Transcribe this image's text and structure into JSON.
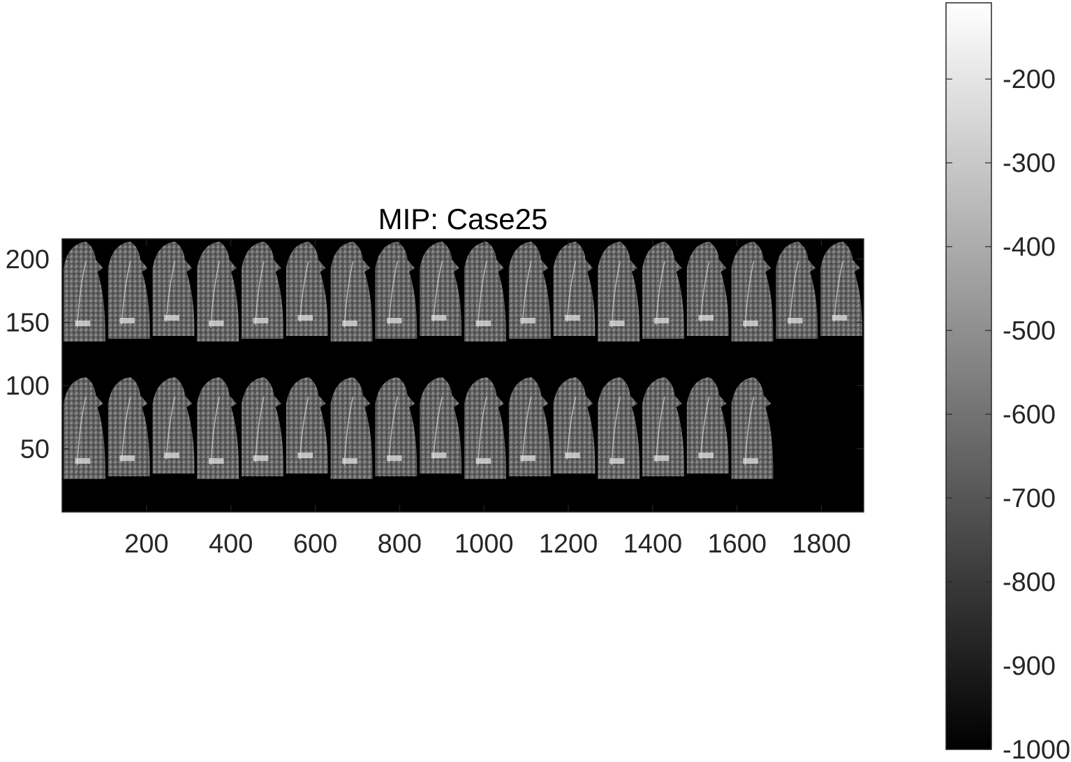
{
  "title": "MIP: Case25",
  "image": {
    "x_ticks": [
      "200",
      "400",
      "600",
      "800",
      "1000",
      "1200",
      "1400",
      "1600",
      "1800"
    ],
    "y_ticks": [
      "200",
      "150",
      "100",
      "50"
    ],
    "x_tick_values": [
      200,
      400,
      600,
      800,
      1000,
      1200,
      1400,
      1600,
      1800
    ],
    "y_tick_values": [
      200,
      150,
      100,
      50
    ],
    "xlim": [
      0,
      1900
    ],
    "ylim": [
      0,
      216
    ],
    "rows": 2,
    "tiles_per_row": [
      18,
      16
    ],
    "background_color": "#000000"
  },
  "colorbar": {
    "colormap": "gray",
    "ticks": [
      "-200",
      "-300",
      "-400",
      "-500",
      "-600",
      "-700",
      "-800",
      "-900",
      "-1000"
    ],
    "tick_values": [
      -200,
      -300,
      -400,
      -500,
      -600,
      -700,
      -800,
      -900,
      -1000
    ],
    "clim": [
      -1000,
      -109
    ]
  }
}
